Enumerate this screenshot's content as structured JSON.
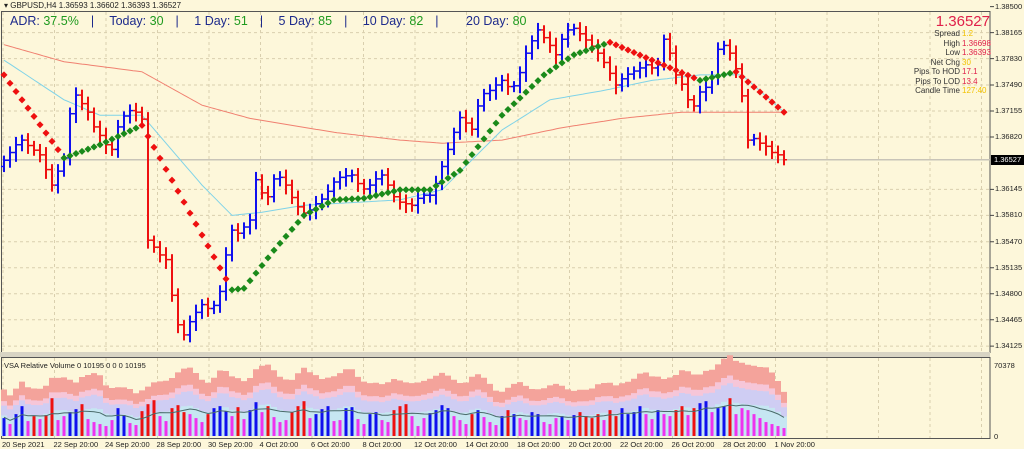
{
  "header": {
    "symbol": "GBPUSD,H4",
    "ohlc": "1.36593 1.36602 1.36393 1.36527"
  },
  "adr": {
    "adr_label": "ADR:",
    "adr_value": "37.5%",
    "today_label": "Today:",
    "today_value": "30",
    "d1_label": "1 Day:",
    "d1_value": "51",
    "d5_label": "5 Day:",
    "d5_value": "85",
    "d10_label": "10 Day:",
    "d10_value": "82",
    "d20_label": "20 Day:",
    "d20_value": "80",
    "separator": "|"
  },
  "info_panel": {
    "price": "1.36527",
    "rows": [
      {
        "label": "Spread",
        "value": "1.2",
        "color": "gold"
      },
      {
        "label": "High",
        "value": "1.36698",
        "color": "red"
      },
      {
        "label": "Low",
        "value": "1.36393",
        "color": "red"
      },
      {
        "label": "Net Chg",
        "value": "30",
        "color": "gold"
      },
      {
        "label": "Pips To HOD",
        "value": "17.1",
        "color": "red"
      },
      {
        "label": "Pips To LOD",
        "value": "13.4",
        "color": "red"
      },
      {
        "label": "Candle Time",
        "value": "127:40",
        "color": "gold"
      }
    ]
  },
  "price_axis": [
    "1.38500",
    "1.38165",
    "1.37830",
    "1.37490",
    "1.37155",
    "1.36820",
    "1.36145",
    "1.35810",
    "1.35470",
    "1.35135",
    "1.34800",
    "1.34465",
    "1.34125"
  ],
  "current_price_label": "1.36527",
  "time_axis": [
    "20 Sep 2021",
    "22 Sep 20:00",
    "24 Sep 20:00",
    "28 Sep 20:00",
    "30 Sep 20:00",
    "4 Oct 20:00",
    "6 Oct 20:00",
    "8 Oct 20:00",
    "12 Oct 20:00",
    "14 Oct 20:00",
    "18 Oct 20:00",
    "20 Oct 20:00",
    "22 Oct 20:00",
    "26 Oct 20:00",
    "28 Oct 20:00",
    "1 Nov 20:00"
  ],
  "volume_panel": {
    "title": "VSA Relative Volume 0 10195 0 0 0 10195",
    "max_label": "70378",
    "min_label": "0"
  },
  "colors": {
    "background": "#fdf7da",
    "up_bar": "#1010ee",
    "down_bar": "#ee1010",
    "signal_up": "#1a8a1a",
    "signal_down": "#ee1010",
    "fast_ma": "#7fd3e8",
    "slow_ma": "#f08070",
    "low_volume": "#ee33ee"
  },
  "chart_data": {
    "type": "ohlc",
    "symbol": "GBPUSD",
    "timeframe": "H4",
    "ylim": [
      1.34125,
      1.385
    ],
    "grid": true,
    "close": [
      1.3652,
      1.3662,
      1.3672,
      1.3678,
      1.3671,
      1.3665,
      1.3659,
      1.364,
      1.362,
      1.3638,
      1.3655,
      1.3712,
      1.3736,
      1.3725,
      1.3714,
      1.3695,
      1.3684,
      1.3672,
      1.3666,
      1.3695,
      1.3709,
      1.3716,
      1.3714,
      1.3705,
      1.3549,
      1.354,
      1.353,
      1.3524,
      1.3478,
      1.344,
      1.3427,
      1.3444,
      1.3456,
      1.3466,
      1.3461,
      1.3465,
      1.3483,
      1.353,
      1.3562,
      1.3558,
      1.3566,
      1.3575,
      1.3627,
      1.361,
      1.3605,
      1.3628,
      1.363,
      1.362,
      1.3604,
      1.3592,
      1.3584,
      1.3588,
      1.3596,
      1.3602,
      1.3612,
      1.3624,
      1.363,
      1.3632,
      1.3633,
      1.3622,
      1.3615,
      1.362,
      1.3628,
      1.3633,
      1.362,
      1.3605,
      1.3598,
      1.3596,
      1.3594,
      1.3603,
      1.3607,
      1.3607,
      1.3622,
      1.3644,
      1.3666,
      1.3688,
      1.3707,
      1.37,
      1.3692,
      1.3722,
      1.3738,
      1.3742,
      1.3749,
      1.3755,
      1.3747,
      1.3748,
      1.3765,
      1.379,
      1.3806,
      1.382,
      1.381,
      1.38,
      1.3788,
      1.3808,
      1.382,
      1.3822,
      1.3815,
      1.3807,
      1.3799,
      1.379,
      1.3778,
      1.3764,
      1.3749,
      1.3757,
      1.3763,
      1.3767,
      1.3771,
      1.3775,
      1.3771,
      1.3775,
      1.3808,
      1.379,
      1.3762,
      1.375,
      1.373,
      1.3722,
      1.374,
      1.3746,
      1.376,
      1.3795,
      1.38,
      1.379,
      1.377,
      1.3735,
      1.3678,
      1.368,
      1.3674,
      1.367,
      1.3662,
      1.3659,
      1.36527
    ],
    "signal_line": [
      [
        0,
        1.3762
      ],
      [
        10,
        1.3655
      ],
      [
        16,
        1.3672
      ],
      [
        23,
        1.3697
      ],
      [
        38,
        1.3485
      ],
      [
        40,
        1.3487
      ],
      [
        45,
        1.3536
      ],
      [
        50,
        1.3581
      ],
      [
        55,
        1.3601
      ],
      [
        60,
        1.3603
      ],
      [
        66,
        1.3614
      ],
      [
        71,
        1.3614
      ],
      [
        76,
        1.3639
      ],
      [
        83,
        1.371
      ],
      [
        90,
        1.3762
      ],
      [
        95,
        1.3788
      ],
      [
        101,
        1.3804
      ],
      [
        108,
        1.3781
      ],
      [
        116,
        1.3755
      ],
      [
        122,
        1.3766
      ],
      [
        130,
        1.3714
      ]
    ],
    "fast_ma": [
      [
        0,
        1.3781
      ],
      [
        10,
        1.373
      ],
      [
        16,
        1.371
      ],
      [
        23,
        1.371
      ],
      [
        33,
        1.362
      ],
      [
        38,
        1.3581
      ],
      [
        43,
        1.3585
      ],
      [
        50,
        1.3594
      ],
      [
        66,
        1.3601
      ],
      [
        73,
        1.3614
      ],
      [
        83,
        1.3691
      ],
      [
        91,
        1.373
      ],
      [
        100,
        1.3742
      ],
      [
        108,
        1.3755
      ],
      [
        116,
        1.3762
      ],
      [
        123,
        1.3762
      ],
      [
        130,
        1.3714
      ]
    ],
    "slow_ma": [
      [
        0,
        1.3801
      ],
      [
        10,
        1.3779
      ],
      [
        23,
        1.3766
      ],
      [
        33,
        1.3723
      ],
      [
        41,
        1.3706
      ],
      [
        55,
        1.3688
      ],
      [
        66,
        1.3678
      ],
      [
        73,
        1.3674
      ],
      [
        83,
        1.3678
      ],
      [
        93,
        1.3694
      ],
      [
        103,
        1.3706
      ],
      [
        113,
        1.3714
      ],
      [
        130,
        1.3714
      ]
    ],
    "volume": [
      18000,
      12000,
      22000,
      30000,
      15000,
      20000,
      17000,
      21000,
      38000,
      16000,
      20000,
      24000,
      27000,
      32000,
      17000,
      14000,
      12000,
      10000,
      16000,
      28000,
      21000,
      13000,
      11000,
      25000,
      32000,
      36000,
      20000,
      15000,
      28000,
      31000,
      24000,
      22000,
      18000,
      14000,
      22000,
      28000,
      30000,
      25000,
      20000,
      29000,
      17000,
      26000,
      34000,
      24000,
      30000,
      19000,
      14000,
      16000,
      24000,
      30000,
      35000,
      18000,
      22000,
      27000,
      30000,
      15000,
      16000,
      28000,
      29000,
      17000,
      12000,
      22000,
      24000,
      16000,
      14000,
      26000,
      30000,
      32000,
      20000,
      10000,
      18000,
      23000,
      26000,
      31000,
      28000,
      20000,
      16000,
      12000,
      22000,
      26000,
      19000,
      14000,
      11000,
      20000,
      26000,
      22000,
      18000,
      16000,
      24000,
      22000,
      14000,
      12000,
      18000,
      20000,
      16000,
      21000,
      24000,
      20000,
      18000,
      22000,
      16000,
      26000,
      20000,
      28000,
      22000,
      24000,
      30000,
      22000,
      17000,
      26000,
      22000,
      20000,
      26000,
      30000,
      21000,
      28000,
      33000,
      35000,
      24000,
      28000,
      30000,
      38000,
      22000,
      28000,
      26000,
      22000,
      18000,
      14000,
      12000,
      10000,
      8000
    ],
    "volume_ylim": [
      0,
      70378
    ]
  }
}
